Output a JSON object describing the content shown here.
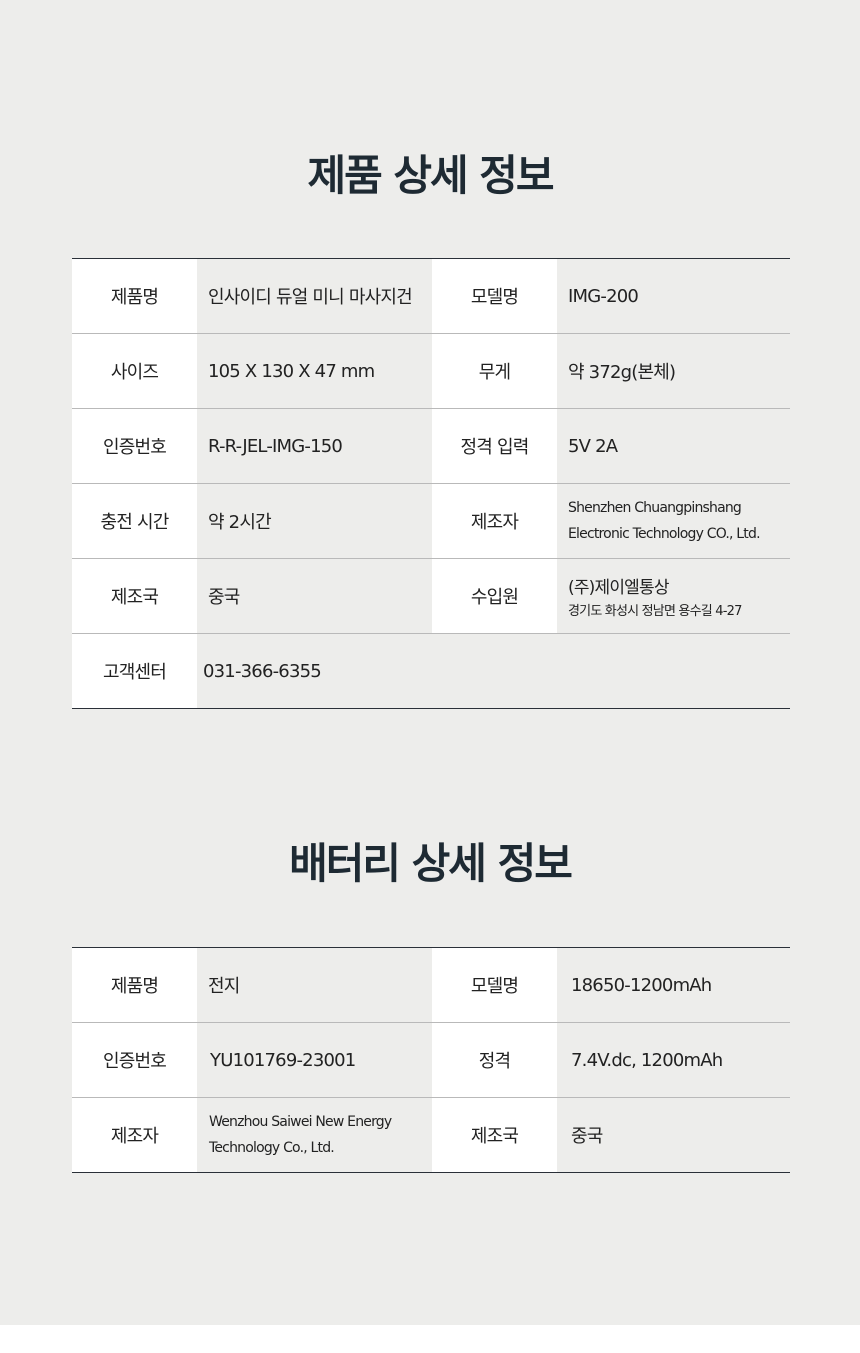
{
  "product": {
    "title": "제품 상세 정보",
    "rows": [
      [
        {
          "label": "제품명",
          "value": "인사이디 듀얼 미니 마사지건"
        },
        {
          "label": "모델명",
          "value": "IMG-200"
        }
      ],
      [
        {
          "label": "사이즈",
          "value": "105 X 130 X 47 mm"
        },
        {
          "label": "무게",
          "value": "약 372g(본체)"
        }
      ],
      [
        {
          "label": "인증번호",
          "value": "R-R-JEL-IMG-150"
        },
        {
          "label": "정격 입력",
          "value": "5V 2A"
        }
      ],
      [
        {
          "label": "충전 시간",
          "value": "약 2시간"
        },
        {
          "label": "제조자",
          "value": "Shenzhen Chuangpinshang",
          "value2": "Electronic Technology CO., Ltd."
        }
      ],
      [
        {
          "label": "제조국",
          "value": "중국"
        },
        {
          "label": "수입원",
          "value": "(주)제이엘통상",
          "value2": "경기도 화성시 정남면 용수길 4-27"
        }
      ],
      [
        {
          "label": "고객센터",
          "value": "031-366-6355"
        }
      ]
    ]
  },
  "battery": {
    "title": "배터리 상세 정보",
    "rows": [
      [
        {
          "label": "제품명",
          "value": "전지"
        },
        {
          "label": "모델명",
          "value": "18650-1200mAh"
        }
      ],
      [
        {
          "label": "인증번호",
          "value": "YU101769-23001"
        },
        {
          "label": "정격",
          "value": "7.4V.dc, 1200mAh"
        }
      ],
      [
        {
          "label": "제조자",
          "value": "Wenzhou Saiwei New Energy",
          "value2": "Technology Co., Ltd."
        },
        {
          "label": "제조국",
          "value": "중국"
        }
      ]
    ]
  }
}
